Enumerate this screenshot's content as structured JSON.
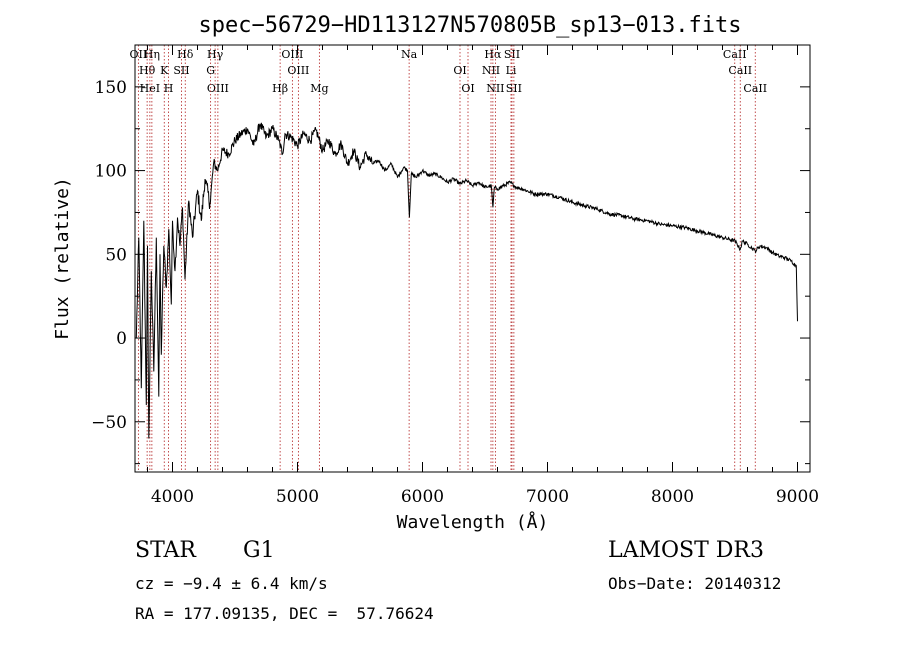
{
  "chart_data": {
    "type": "line",
    "title": "spec−56729−HD113127N570805B_sp13−013.fits",
    "xlabel": "Wavelength (Å)",
    "ylabel": "Flux (relative)",
    "xlim": [
      3700,
      9100
    ],
    "ylim": [
      -80,
      175
    ],
    "x_ticks": [
      4000,
      5000,
      6000,
      7000,
      8000,
      9000
    ],
    "x_tick_labels": [
      "4000",
      "5000",
      "6000",
      "7000",
      "8000",
      "9000"
    ],
    "y_ticks": [
      -50,
      0,
      50,
      100,
      150
    ],
    "y_tick_labels": [
      "−50",
      "0",
      "50",
      "100",
      "150"
    ],
    "series": [
      {
        "name": "flux",
        "color": "#000000",
        "x": [
          3710,
          3730,
          3750,
          3770,
          3790,
          3800,
          3810,
          3830,
          3850,
          3870,
          3890,
          3900,
          3910,
          3930,
          3950,
          3970,
          3990,
          4000,
          4020,
          4040,
          4060,
          4080,
          4100,
          4130,
          4160,
          4200,
          4230,
          4260,
          4300,
          4330,
          4360,
          4400,
          4450,
          4500,
          4550,
          4600,
          4650,
          4700,
          4750,
          4800,
          4850,
          4880,
          4900,
          4950,
          5000,
          5050,
          5100,
          5150,
          5200,
          5250,
          5300,
          5350,
          5400,
          5450,
          5500,
          5550,
          5600,
          5650,
          5700,
          5750,
          5800,
          5850,
          5880,
          5895,
          5910,
          5950,
          6000,
          6050,
          6100,
          6150,
          6200,
          6250,
          6300,
          6350,
          6400,
          6450,
          6500,
          6550,
          6563,
          6575,
          6600,
          6650,
          6700,
          6750,
          6800,
          6900,
          7000,
          7100,
          7200,
          7300,
          7400,
          7500,
          7600,
          7700,
          7800,
          7900,
          8000,
          8100,
          8200,
          8300,
          8400,
          8500,
          8542,
          8560,
          8600,
          8662,
          8700,
          8750,
          8800,
          8850,
          8900,
          8950,
          8990,
          9000
        ],
        "values": [
          0,
          60,
          -30,
          70,
          -40,
          55,
          -60,
          40,
          -20,
          60,
          -35,
          50,
          -10,
          55,
          30,
          65,
          20,
          70,
          40,
          72,
          55,
          78,
          35,
          82,
          60,
          88,
          70,
          95,
          80,
          105,
          100,
          112,
          110,
          118,
          122,
          125,
          115,
          128,
          120,
          125,
          118,
          110,
          122,
          120,
          115,
          122,
          118,
          124,
          112,
          118,
          110,
          116,
          104,
          112,
          102,
          110,
          104,
          106,
          100,
          104,
          96,
          102,
          100,
          72,
          98,
          96,
          100,
          97,
          98,
          96,
          93,
          95,
          92,
          94,
          91,
          93,
          90,
          91,
          78,
          90,
          89,
          91,
          93,
          90,
          89,
          86,
          86,
          84,
          81,
          79,
          77,
          74,
          73,
          71,
          70,
          68,
          67,
          66,
          64,
          62,
          60,
          58,
          53,
          58,
          56,
          52,
          55,
          54,
          51,
          49,
          48,
          46,
          43,
          10
        ]
      }
    ],
    "lines": [
      {
        "label": "OII",
        "x": 3727
      },
      {
        "label": "Hθ",
        "x": 3797
      },
      {
        "label": "HeI",
        "x": 3819
      },
      {
        "label": "Hη",
        "x": 3835
      },
      {
        "label": "K",
        "x": 3934
      },
      {
        "label": "H",
        "x": 3968
      },
      {
        "label": "Hδ",
        "x": 4102
      },
      {
        "label": "SII",
        "x": 4072
      },
      {
        "label": "OIII",
        "x": 4363
      },
      {
        "label": "Hγ",
        "x": 4341
      },
      {
        "label": "G",
        "x": 4305
      },
      {
        "label": "Hβ",
        "x": 4861
      },
      {
        "label": "OIII",
        "x": 4959
      },
      {
        "label": "OIII",
        "x": 5007
      },
      {
        "label": "Mg",
        "x": 5175
      },
      {
        "label": "Na",
        "x": 5893
      },
      {
        "label": "OI",
        "x": 6300
      },
      {
        "label": "OI",
        "x": 6364
      },
      {
        "label": "Hα",
        "x": 6563
      },
      {
        "label": "NII",
        "x": 6548
      },
      {
        "label": "NII",
        "x": 6583
      },
      {
        "label": "SII",
        "x": 6716
      },
      {
        "label": "Li",
        "x": 6708
      },
      {
        "label": "SII",
        "x": 6731
      },
      {
        "label": "CaII",
        "x": 8498
      },
      {
        "label": "CaII",
        "x": 8542
      },
      {
        "label": "CaII",
        "x": 8662
      }
    ]
  },
  "info": {
    "object_class": "STAR",
    "subclass": "G1",
    "survey": "LAMOST DR3",
    "cz": "cz = −9.4 ± 6.4 km/s",
    "obs_date": "Obs−Date: 20140312",
    "radec": "RA = 177.09135, DEC =  57.76624"
  }
}
